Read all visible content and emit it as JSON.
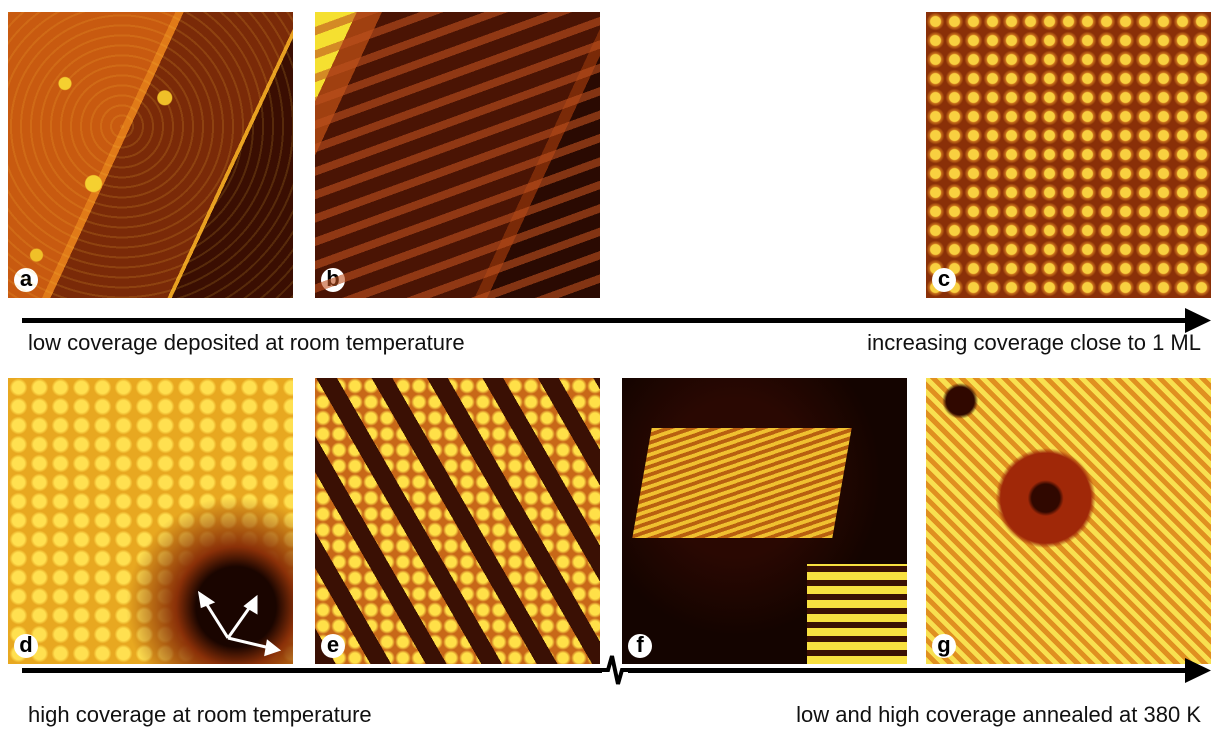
{
  "panels": [
    {
      "label": "a"
    },
    {
      "label": "b"
    },
    {
      "label": "c"
    },
    {
      "label": "d"
    },
    {
      "label": "e"
    },
    {
      "label": "f"
    },
    {
      "label": "g"
    }
  ],
  "arrows": [
    {
      "left_label": "low coverage deposited at room temperature",
      "right_label": "increasing coverage close to 1 ML"
    },
    {
      "left_label": "high coverage at room temperature",
      "right_label": "low and high coverage annealed at 380 K"
    }
  ]
}
